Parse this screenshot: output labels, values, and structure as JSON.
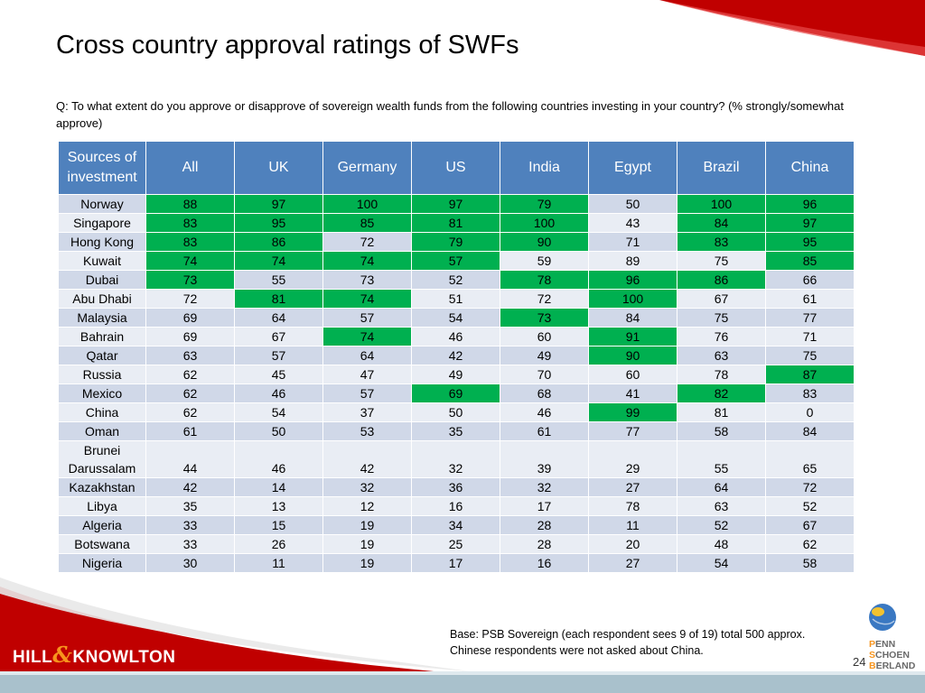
{
  "title": "Cross country approval ratings of SWFs",
  "question": "Q: To what extent do you approve or disapprove of sovereign wealth funds from the following countries investing in your country? (% strongly/somewhat approve)",
  "table": {
    "header": [
      "Sources of investment",
      "All",
      "UK",
      "Germany",
      "US",
      "India",
      "Egypt",
      "Brazil",
      "China"
    ],
    "rows": [
      {
        "label": "Norway",
        "values": [
          "88",
          "97",
          "100",
          "97",
          "79",
          "50",
          "100",
          "96"
        ],
        "hl": [
          1,
          1,
          1,
          1,
          1,
          0,
          1,
          1
        ]
      },
      {
        "label": "Singapore",
        "values": [
          "83",
          "95",
          "85",
          "81",
          "100",
          "43",
          "84",
          "97"
        ],
        "hl": [
          1,
          1,
          1,
          1,
          1,
          0,
          1,
          1
        ]
      },
      {
        "label": "Hong Kong",
        "values": [
          "83",
          "86",
          "72",
          "79",
          "90",
          "71",
          "83",
          "95"
        ],
        "hl": [
          1,
          1,
          0,
          1,
          1,
          0,
          1,
          1
        ]
      },
      {
        "label": "Kuwait",
        "values": [
          "74",
          "74",
          "74",
          "57",
          "59",
          "89",
          "75",
          "85"
        ],
        "hl": [
          1,
          1,
          1,
          1,
          0,
          0,
          0,
          1
        ]
      },
      {
        "label": "Dubai",
        "values": [
          "73",
          "55",
          "73",
          "52",
          "78",
          "96",
          "86",
          "66"
        ],
        "hl": [
          1,
          0,
          0,
          0,
          1,
          1,
          1,
          0
        ]
      },
      {
        "label": "Abu Dhabi",
        "values": [
          "72",
          "81",
          "74",
          "51",
          "72",
          "100",
          "67",
          "61"
        ],
        "hl": [
          0,
          1,
          1,
          0,
          0,
          1,
          0,
          0
        ]
      },
      {
        "label": "Malaysia",
        "values": [
          "69",
          "64",
          "57",
          "54",
          "73",
          "84",
          "75",
          "77"
        ],
        "hl": [
          0,
          0,
          0,
          0,
          1,
          0,
          0,
          0
        ]
      },
      {
        "label": "Bahrain",
        "values": [
          "69",
          "67",
          "74",
          "46",
          "60",
          "91",
          "76",
          "71"
        ],
        "hl": [
          0,
          0,
          1,
          0,
          0,
          1,
          0,
          0
        ]
      },
      {
        "label": "Qatar",
        "values": [
          "63",
          "57",
          "64",
          "42",
          "49",
          "90",
          "63",
          "75"
        ],
        "hl": [
          0,
          0,
          0,
          0,
          0,
          1,
          0,
          0
        ]
      },
      {
        "label": "Russia",
        "values": [
          "62",
          "45",
          "47",
          "49",
          "70",
          "60",
          "78",
          "87"
        ],
        "hl": [
          0,
          0,
          0,
          0,
          0,
          0,
          0,
          1
        ]
      },
      {
        "label": "Mexico",
        "values": [
          "62",
          "46",
          "57",
          "69",
          "68",
          "41",
          "82",
          "83"
        ],
        "hl": [
          0,
          0,
          0,
          1,
          0,
          0,
          1,
          0
        ]
      },
      {
        "label": "China",
        "values": [
          "62",
          "54",
          "37",
          "50",
          "46",
          "99",
          "81",
          "0"
        ],
        "hl": [
          0,
          0,
          0,
          0,
          0,
          1,
          0,
          0
        ]
      },
      {
        "label": "Oman",
        "values": [
          "61",
          "50",
          "53",
          "35",
          "61",
          "77",
          "58",
          "84"
        ],
        "hl": [
          0,
          0,
          0,
          0,
          0,
          0,
          0,
          0
        ]
      },
      {
        "label": "Brunei Darussalam",
        "label_lines": [
          "Brunei",
          "Darussalam"
        ],
        "values": [
          "44",
          "46",
          "42",
          "32",
          "39",
          "29",
          "55",
          "65"
        ],
        "hl": [
          0,
          0,
          0,
          0,
          0,
          0,
          0,
          0
        ]
      },
      {
        "label": "Kazakhstan",
        "values": [
          "42",
          "14",
          "32",
          "36",
          "32",
          "27",
          "64",
          "72"
        ],
        "hl": [
          0,
          0,
          0,
          0,
          0,
          0,
          0,
          0
        ]
      },
      {
        "label": "Libya",
        "values": [
          "35",
          "13",
          "12",
          "16",
          "17",
          "78",
          "63",
          "52"
        ],
        "hl": [
          0,
          0,
          0,
          0,
          0,
          0,
          0,
          0
        ]
      },
      {
        "label": "Algeria",
        "values": [
          "33",
          "15",
          "19",
          "34",
          "28",
          "11",
          "52",
          "67"
        ],
        "hl": [
          0,
          0,
          0,
          0,
          0,
          0,
          0,
          0
        ]
      },
      {
        "label": "Botswana",
        "values": [
          "33",
          "26",
          "19",
          "25",
          "28",
          "20",
          "48",
          "62"
        ],
        "hl": [
          0,
          0,
          0,
          0,
          0,
          0,
          0,
          0
        ]
      },
      {
        "label": "Nigeria",
        "values": [
          "30",
          "11",
          "19",
          "17",
          "16",
          "27",
          "54",
          "58"
        ],
        "hl": [
          0,
          0,
          0,
          0,
          0,
          0,
          0,
          0
        ]
      }
    ]
  },
  "base_note": "Base: PSB Sovereign (each respondent sees 9 of 19) total 500 approx. Chinese respondents were not asked about China.",
  "footer": {
    "logo_left": "HILL & KNOWLTON",
    "logo_left_a": "HILL",
    "logo_left_amp": "&",
    "logo_left_b": "KNOWLTON",
    "logo_right": [
      "PENN",
      "SCHOEN",
      "BERLAND"
    ],
    "page_number": "24"
  },
  "colors": {
    "header_blue": "#4f81bd",
    "highlight_green": "#00b050",
    "row_band_dark": "#d0d8e8",
    "row_band_light": "#e9edf4",
    "accent_red": "#c00000"
  }
}
